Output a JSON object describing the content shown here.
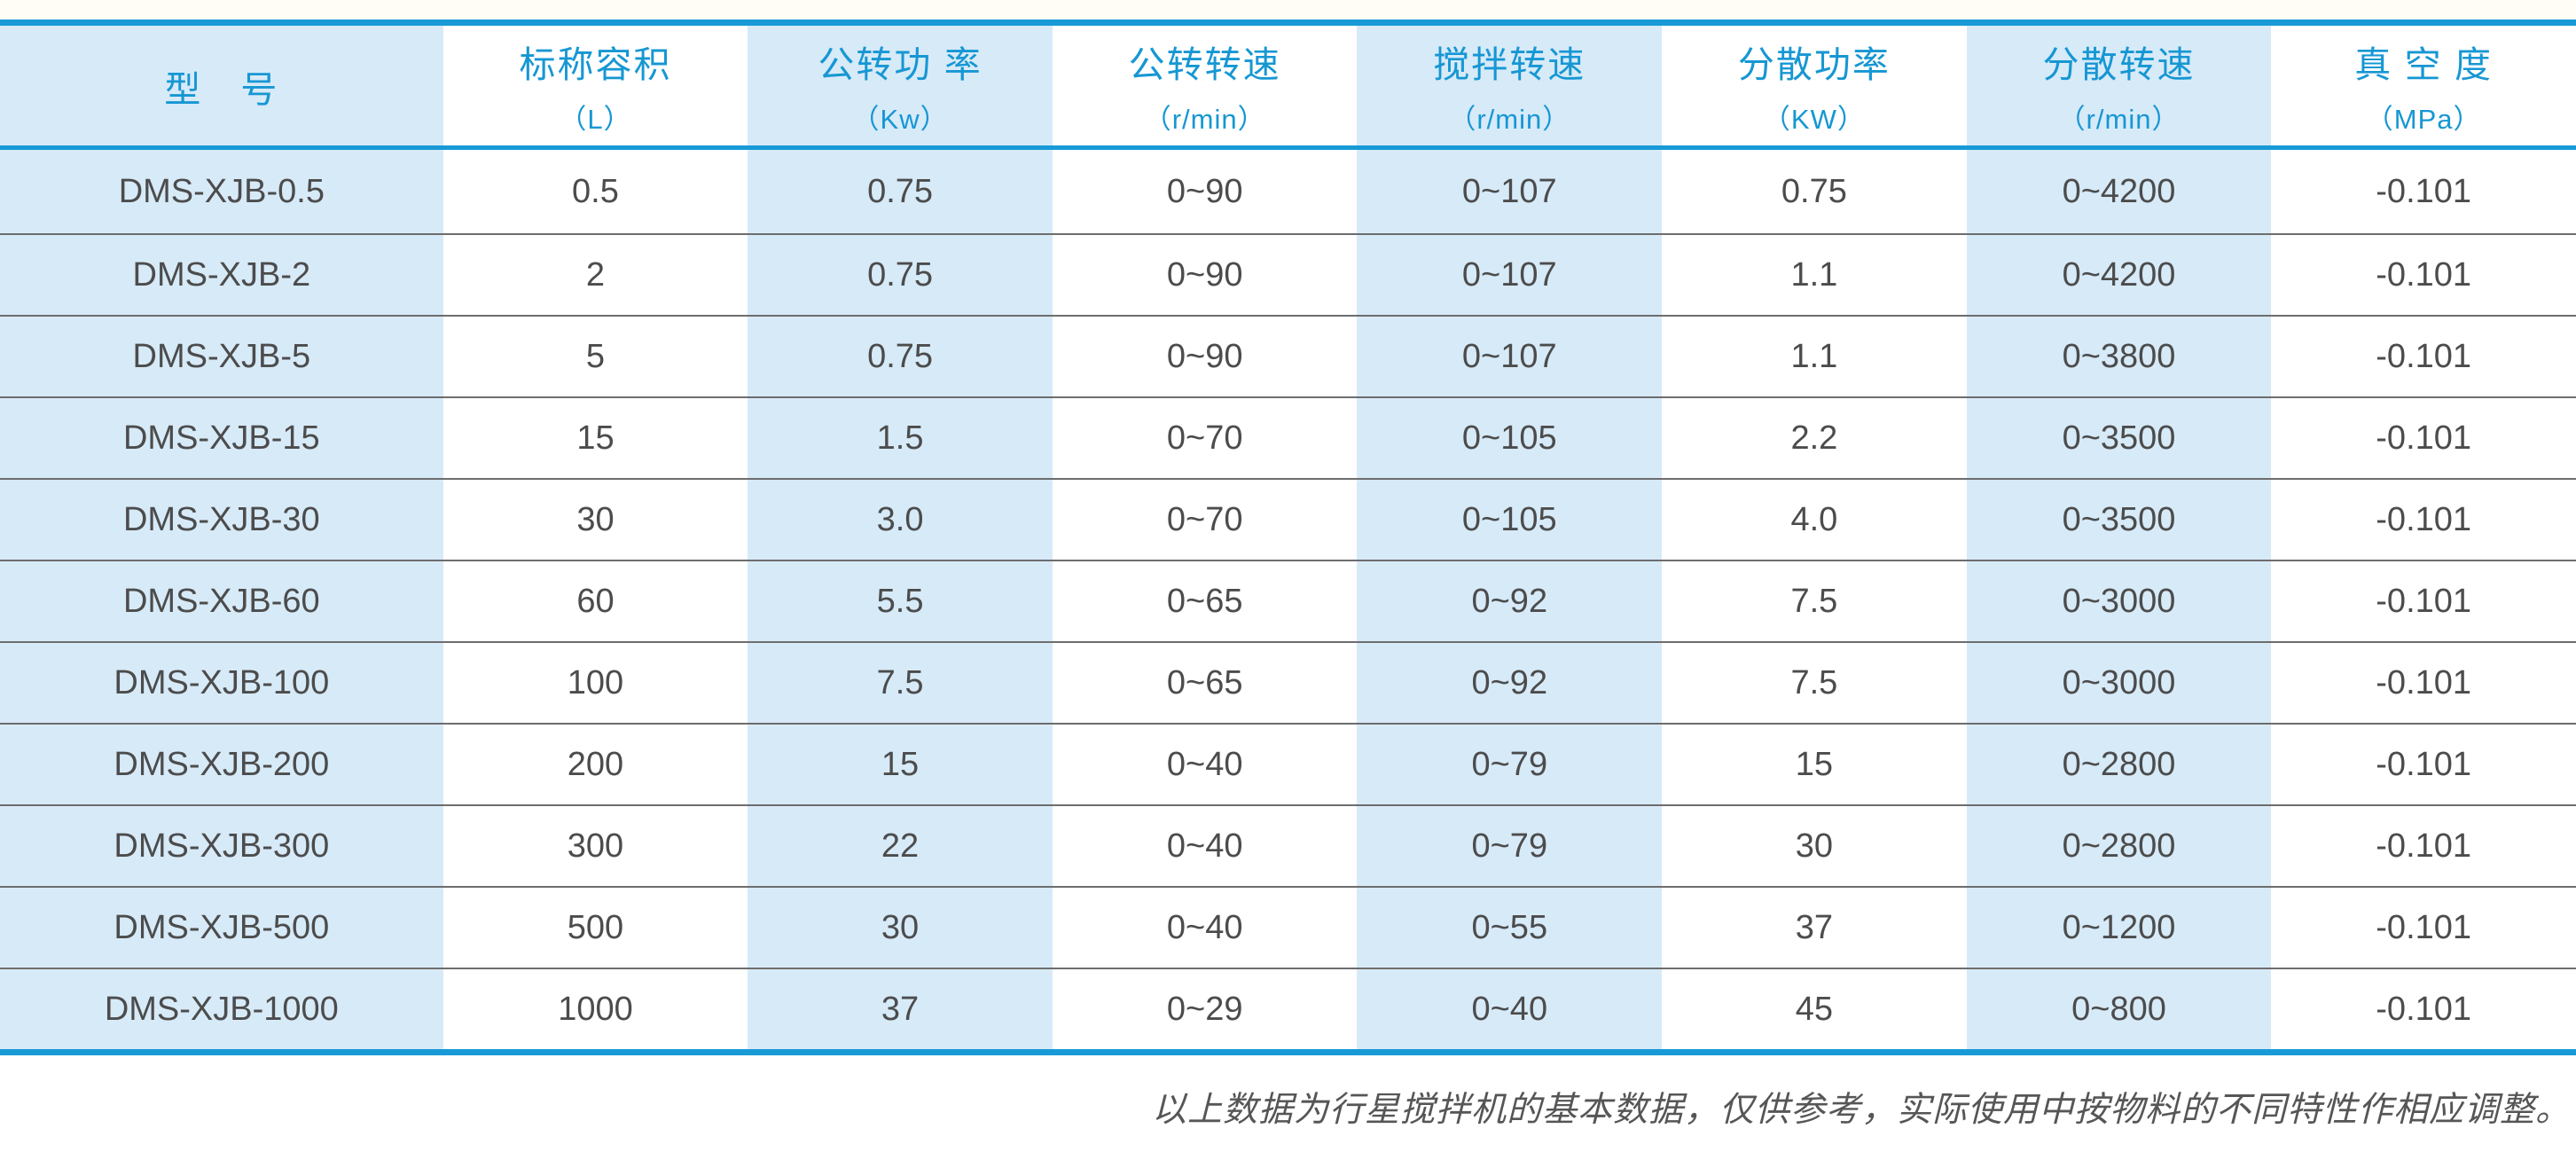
{
  "colors": {
    "accent_blue": "#189ad6",
    "header_text_blue": "#1697d3",
    "column_stripe_blue": "#d7eaf8",
    "body_text": "#4c4c4c",
    "row_separator": "#6d6d6d",
    "note_text": "#565656"
  },
  "table": {
    "columns": [
      {
        "title": "型　号",
        "unit": ""
      },
      {
        "title": "标称容积",
        "unit": "（L）"
      },
      {
        "title": "公转功 率",
        "unit": "（Kw）"
      },
      {
        "title": "公转转速",
        "unit": "（r/min）"
      },
      {
        "title": "搅拌转速",
        "unit": "（r/min）"
      },
      {
        "title": "分散功率",
        "unit": "（KW）"
      },
      {
        "title": "分散转速",
        "unit": "（r/min）"
      },
      {
        "title": "真 空 度",
        "unit": "（MPa）"
      }
    ],
    "rows": [
      {
        "cells": [
          "DMS-XJB-0.5",
          "0.5",
          "0.75",
          "0~90",
          "0~107",
          "0.75",
          "0~4200",
          "-0.101"
        ]
      },
      {
        "cells": [
          "DMS-XJB-2",
          "2",
          "0.75",
          "0~90",
          "0~107",
          "1.1",
          "0~4200",
          "-0.101"
        ]
      },
      {
        "cells": [
          "DMS-XJB-5",
          "5",
          "0.75",
          "0~90",
          "0~107",
          "1.1",
          "0~3800",
          "-0.101"
        ]
      },
      {
        "cells": [
          "DMS-XJB-15",
          "15",
          "1.5",
          "0~70",
          "0~105",
          "2.2",
          "0~3500",
          "-0.101"
        ]
      },
      {
        "cells": [
          "DMS-XJB-30",
          "30",
          "3.0",
          "0~70",
          "0~105",
          "4.0",
          "0~3500",
          "-0.101"
        ]
      },
      {
        "cells": [
          "DMS-XJB-60",
          "60",
          "5.5",
          "0~65",
          "0~92",
          "7.5",
          "0~3000",
          "-0.101"
        ]
      },
      {
        "cells": [
          "DMS-XJB-100",
          "100",
          "7.5",
          "0~65",
          "0~92",
          "7.5",
          "0~3000",
          "-0.101"
        ]
      },
      {
        "cells": [
          "DMS-XJB-200",
          "200",
          "15",
          "0~40",
          "0~79",
          "15",
          "0~2800",
          "-0.101"
        ]
      },
      {
        "cells": [
          "DMS-XJB-300",
          "300",
          "22",
          "0~40",
          "0~79",
          "30",
          "0~2800",
          "-0.101"
        ]
      },
      {
        "cells": [
          "DMS-XJB-500",
          "500",
          "30",
          "0~40",
          "0~55",
          "37",
          "0~1200",
          "-0.101"
        ]
      },
      {
        "cells": [
          "DMS-XJB-1000",
          "1000",
          "37",
          "0~29",
          "0~40",
          "45",
          "0~800",
          "-0.101"
        ]
      }
    ]
  },
  "footer": {
    "note": "以上数据为行星搅拌机的基本数据，仅供参考，实际使用中按物料的不同特性作相应调整。"
  }
}
